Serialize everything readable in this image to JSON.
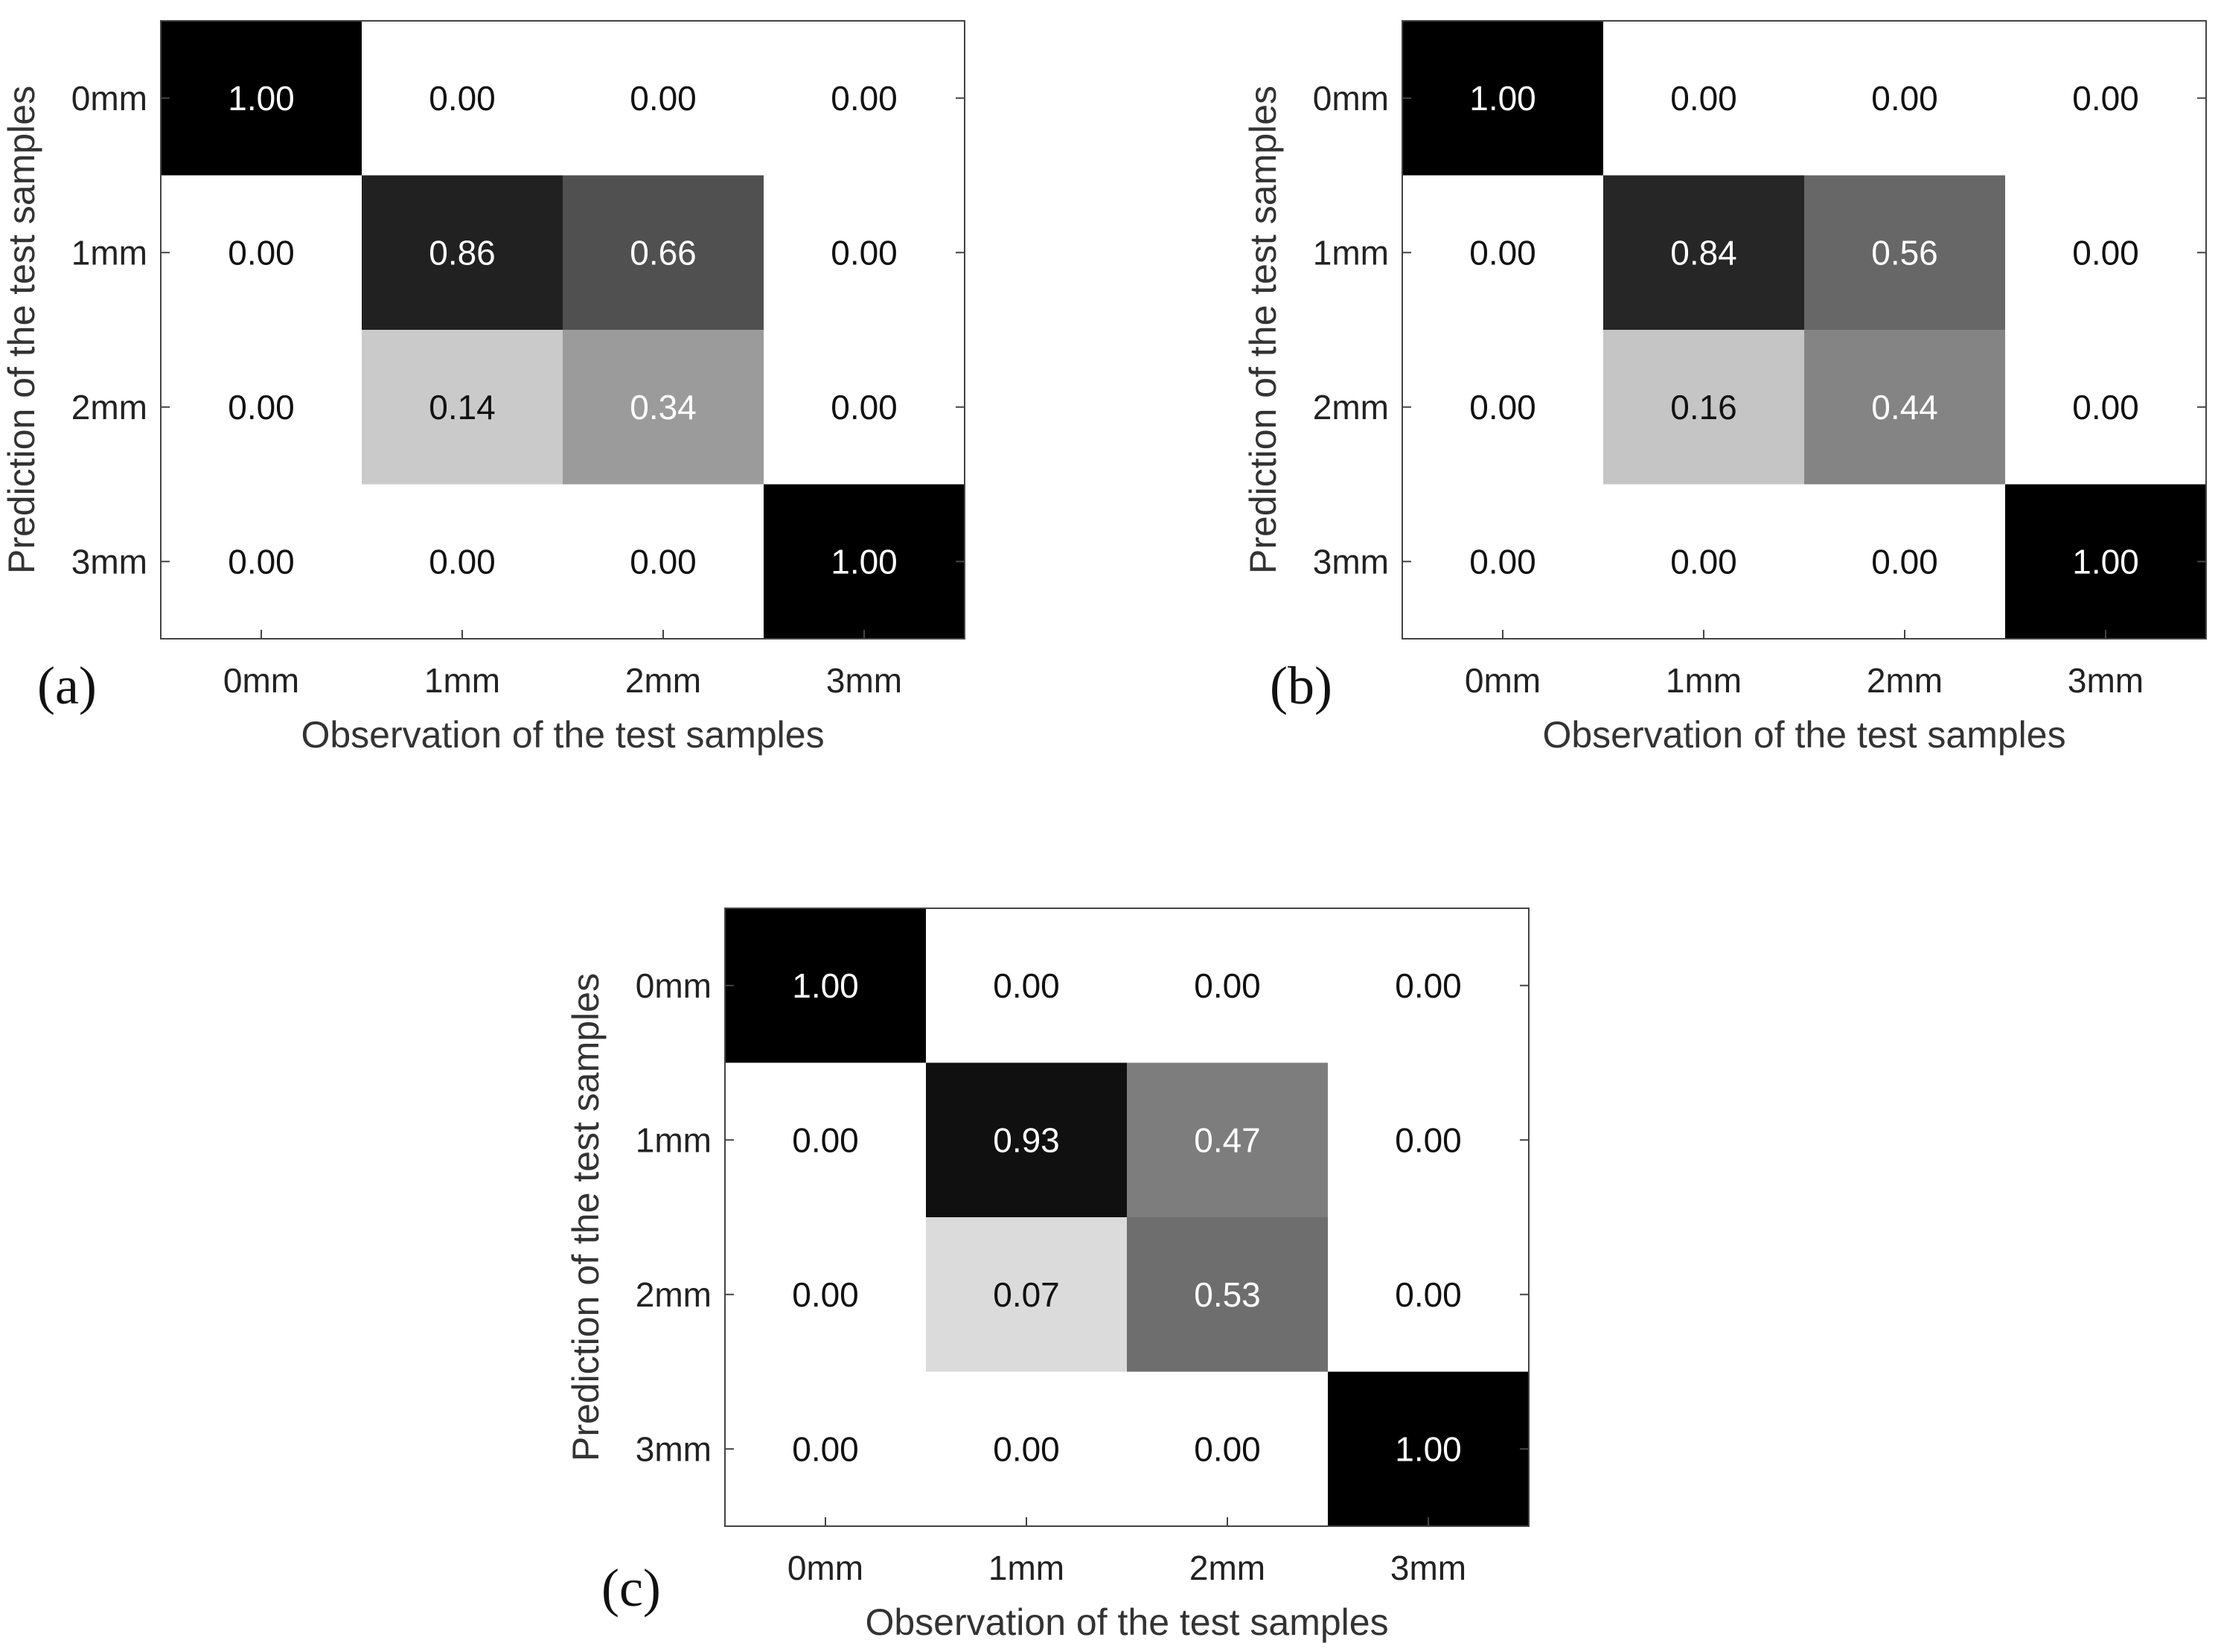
{
  "chart_data": [
    {
      "type": "heatmap",
      "panel_label": "(a)",
      "xlabel": "Observation of the test samples",
      "ylabel": "Prediction of the test samples",
      "x_categories": [
        "0mm",
        "1mm",
        "2mm",
        "3mm"
      ],
      "y_categories": [
        "0mm",
        "1mm",
        "2mm",
        "3mm"
      ],
      "values": [
        [
          "1.00",
          "0.00",
          "0.00",
          "0.00"
        ],
        [
          "0.00",
          "0.86",
          "0.66",
          "0.00"
        ],
        [
          "0.00",
          "0.14",
          "0.34",
          "0.00"
        ],
        [
          "0.00",
          "0.00",
          "0.00",
          "1.00"
        ]
      ],
      "colormap": "gray_reversed",
      "vlim": [
        0,
        1
      ]
    },
    {
      "type": "heatmap",
      "panel_label": "(b)",
      "xlabel": "Observation of the test samples",
      "ylabel": "Prediction of the test samples",
      "x_categories": [
        "0mm",
        "1mm",
        "2mm",
        "3mm"
      ],
      "y_categories": [
        "0mm",
        "1mm",
        "2mm",
        "3mm"
      ],
      "values": [
        [
          "1.00",
          "0.00",
          "0.00",
          "0.00"
        ],
        [
          "0.00",
          "0.84",
          "0.56",
          "0.00"
        ],
        [
          "0.00",
          "0.16",
          "0.44",
          "0.00"
        ],
        [
          "0.00",
          "0.00",
          "0.00",
          "1.00"
        ]
      ],
      "colormap": "gray_reversed",
      "vlim": [
        0,
        1
      ]
    },
    {
      "type": "heatmap",
      "panel_label": "(c)",
      "xlabel": "Observation of the test samples",
      "ylabel": "Prediction of the test samples",
      "x_categories": [
        "0mm",
        "1mm",
        "2mm",
        "3mm"
      ],
      "y_categories": [
        "0mm",
        "1mm",
        "2mm",
        "3mm"
      ],
      "values": [
        [
          "1.00",
          "0.00",
          "0.00",
          "0.00"
        ],
        [
          "0.00",
          "0.93",
          "0.47",
          "0.00"
        ],
        [
          "0.00",
          "0.07",
          "0.53",
          "0.00"
        ],
        [
          "0.00",
          "0.00",
          "0.00",
          "1.00"
        ]
      ],
      "colormap": "gray_reversed",
      "vlim": [
        0,
        1
      ]
    }
  ]
}
